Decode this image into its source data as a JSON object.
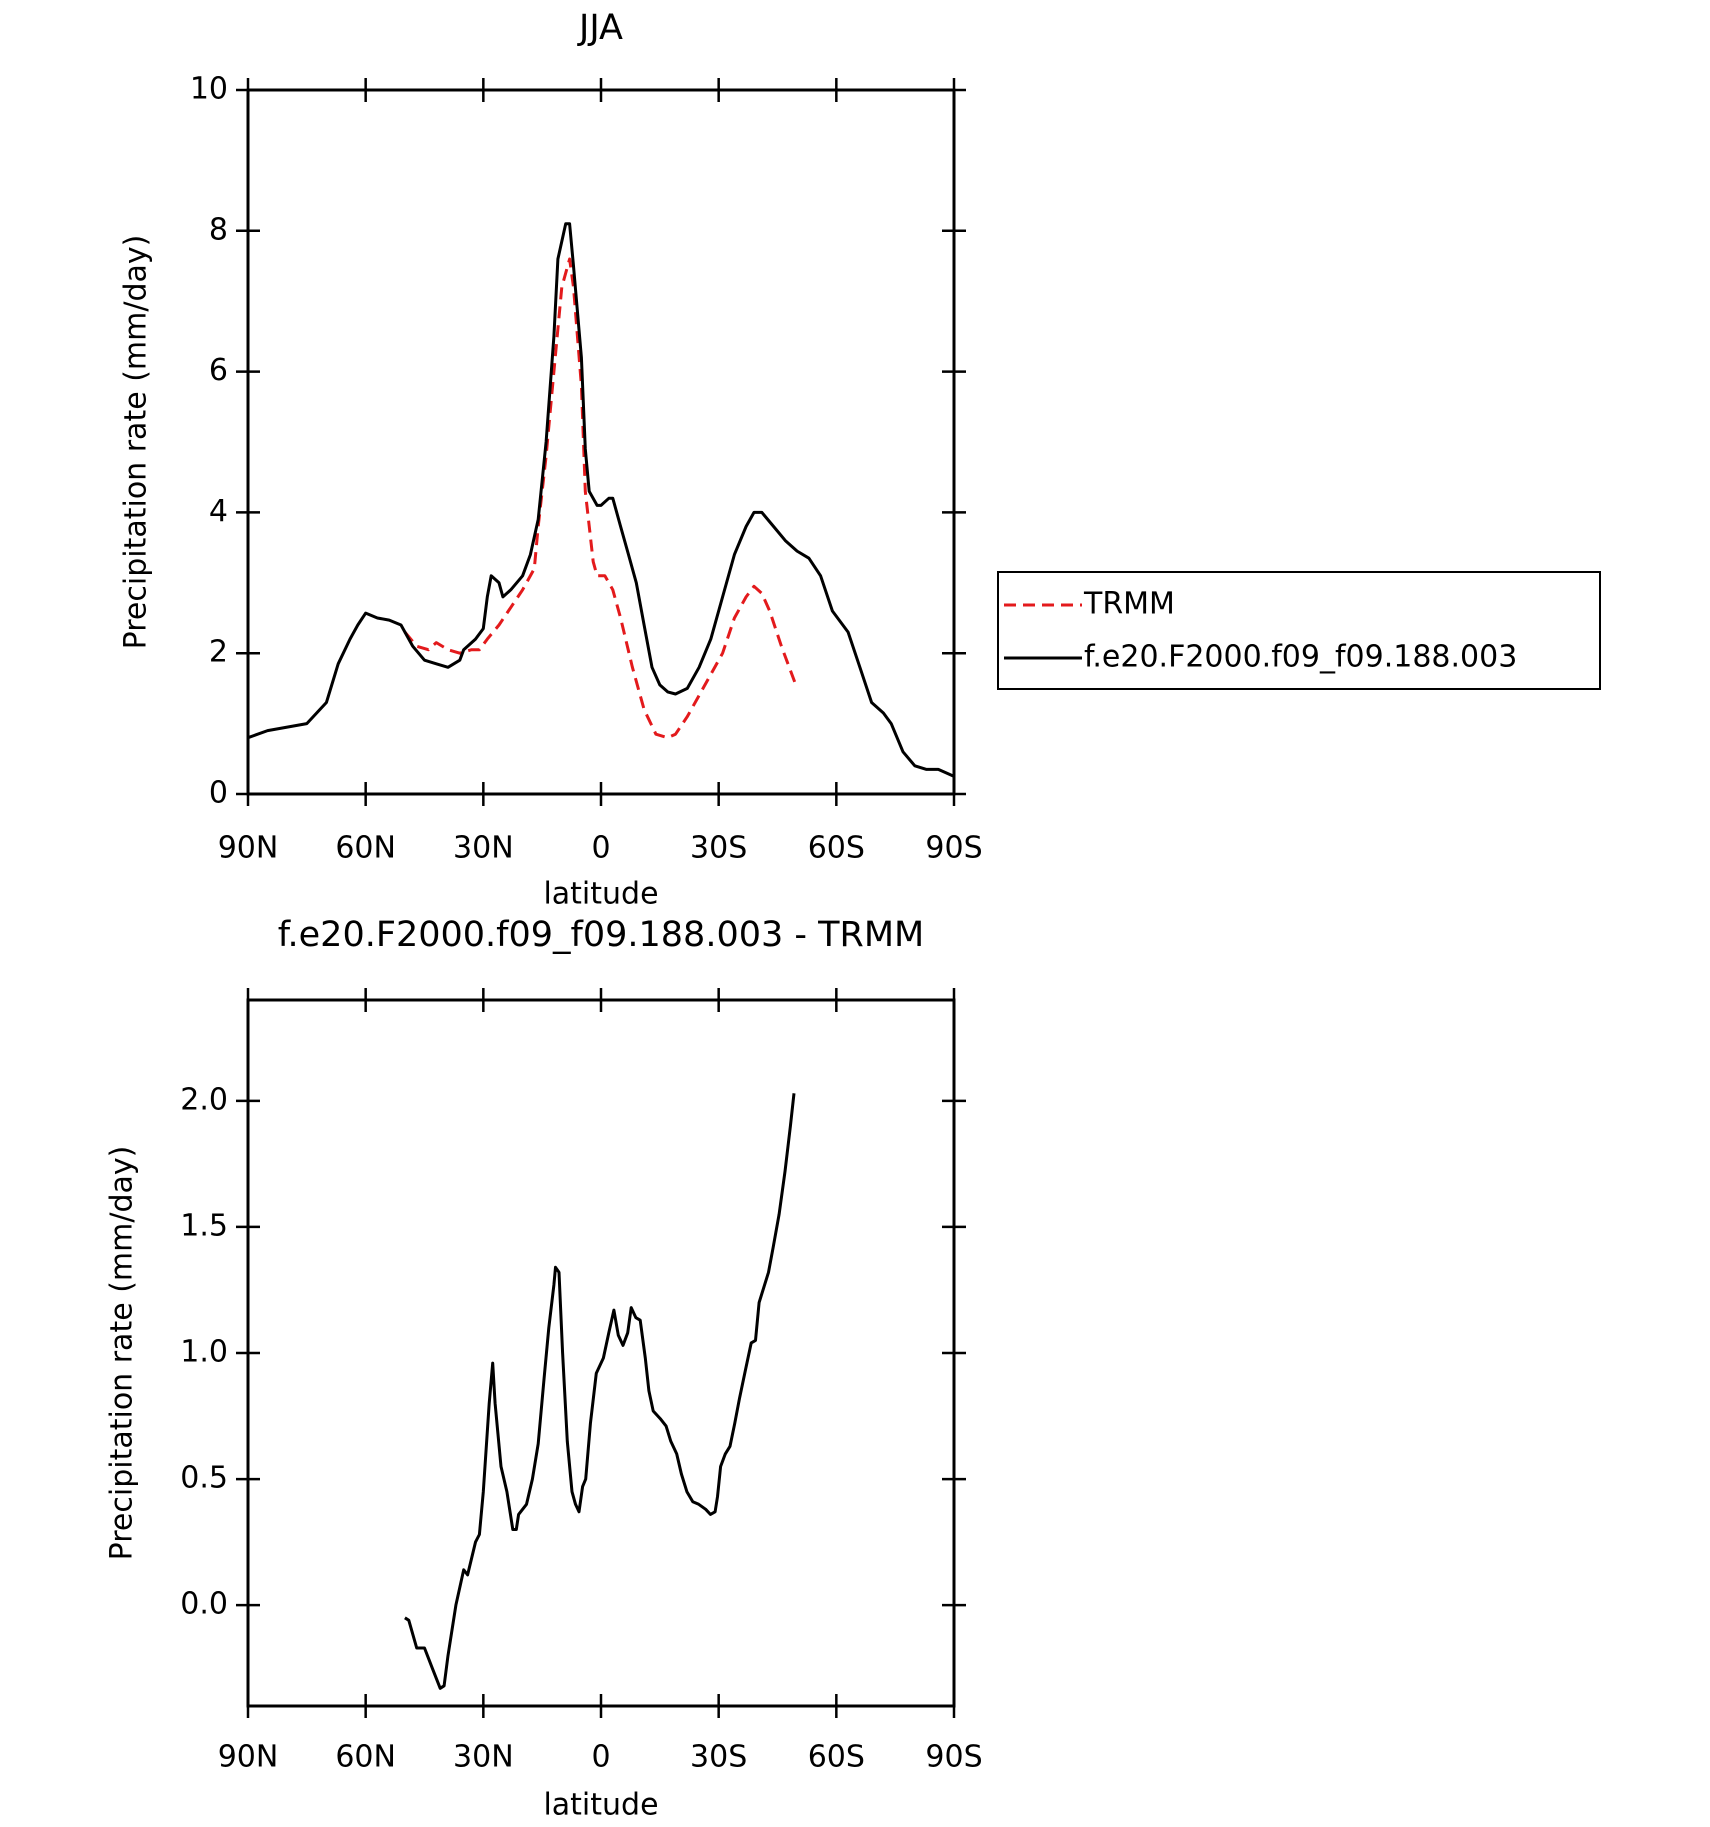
{
  "chart_data": [
    {
      "type": "line",
      "title": "JJA",
      "xlabel": "latitude",
      "ylabel": "Precipitation rate (mm/day)",
      "xlim": [
        90,
        -90
      ],
      "ylim": [
        0,
        10
      ],
      "xticks": [
        {
          "value": 90,
          "label": "90N"
        },
        {
          "value": 60,
          "label": "60N"
        },
        {
          "value": 30,
          "label": "30N"
        },
        0,
        {
          "value": -30,
          "label": "30S"
        },
        {
          "value": -60,
          "label": "60S"
        },
        {
          "value": -90,
          "label": "90S"
        }
      ],
      "yticks": [
        0,
        2,
        4,
        6,
        8,
        10
      ],
      "legend": "right",
      "series": [
        {
          "name": "TRMM",
          "color": "#e31a1c",
          "linestyle": "dashed",
          "x": [
            50,
            47,
            44,
            42,
            39,
            36,
            33,
            31,
            29,
            26,
            23,
            20,
            17,
            16,
            14,
            12,
            10,
            8,
            7,
            5,
            4,
            2,
            1,
            -1,
            -3,
            -5,
            -8,
            -11,
            -14,
            -17,
            -19,
            -22,
            -26,
            -31,
            -34,
            -37,
            -39,
            -41,
            -43,
            -46,
            -50
          ],
          "values": [
            2.3,
            2.1,
            2.05,
            2.15,
            2.05,
            2.0,
            2.05,
            2.05,
            2.2,
            2.4,
            2.65,
            2.9,
            3.2,
            3.8,
            4.8,
            6.0,
            7.2,
            7.6,
            7.2,
            5.8,
            4.3,
            3.3,
            3.1,
            3.1,
            2.9,
            2.5,
            1.8,
            1.2,
            0.85,
            0.8,
            0.85,
            1.1,
            1.5,
            2.0,
            2.5,
            2.8,
            2.95,
            2.85,
            2.6,
            2.1,
            1.5
          ]
        },
        {
          "name": "f.e20.F2000.f09_f09.188.003",
          "color": "#000000",
          "linestyle": "solid",
          "x": [
            90,
            85,
            80,
            75,
            70,
            67,
            64,
            62,
            60,
            57,
            54,
            51,
            48,
            45,
            42,
            39,
            36,
            35,
            32,
            30,
            29,
            28,
            26,
            25,
            23,
            20,
            18,
            16,
            14,
            12,
            11,
            9,
            8,
            7,
            5,
            4,
            3,
            1,
            0,
            -2,
            -3,
            -5,
            -7,
            -9,
            -11,
            -13,
            -15,
            -17,
            -19,
            -22,
            -25,
            -28,
            -31,
            -34,
            -37,
            -39,
            -41,
            -44,
            -47,
            -50,
            -53,
            -56,
            -59,
            -63,
            -66,
            -69,
            -72,
            -74,
            -77,
            -80,
            -83,
            -86,
            -88,
            -90
          ],
          "values": [
            0.8,
            0.9,
            0.95,
            1.0,
            1.3,
            1.85,
            2.2,
            2.4,
            2.57,
            2.5,
            2.47,
            2.4,
            2.1,
            1.9,
            1.85,
            1.8,
            1.9,
            2.05,
            2.2,
            2.35,
            2.8,
            3.1,
            3.0,
            2.8,
            2.9,
            3.1,
            3.4,
            3.9,
            5.0,
            6.5,
            7.6,
            8.1,
            8.1,
            7.5,
            6.2,
            4.9,
            4.3,
            4.1,
            4.1,
            4.2,
            4.2,
            3.8,
            3.4,
            3.0,
            2.4,
            1.8,
            1.55,
            1.45,
            1.42,
            1.5,
            1.8,
            2.2,
            2.8,
            3.4,
            3.8,
            4.0,
            4.0,
            3.8,
            3.6,
            3.45,
            3.35,
            3.1,
            2.6,
            2.3,
            1.8,
            1.3,
            1.15,
            1.0,
            0.6,
            0.4,
            0.35,
            0.35,
            0.3,
            0.25
          ]
        }
      ]
    },
    {
      "type": "line",
      "title": "f.e20.F2000.f09_f09.188.003 - TRMM",
      "xlabel": "latitude",
      "ylabel": "Precipitation rate (mm/day)",
      "xlim": [
        90,
        -90
      ],
      "ylim": [
        -0.4,
        2.4
      ],
      "xticks": [
        {
          "value": 90,
          "label": "90N"
        },
        {
          "value": 60,
          "label": "60N"
        },
        {
          "value": 30,
          "label": "30N"
        },
        0,
        {
          "value": -30,
          "label": "30S"
        },
        {
          "value": -60,
          "label": "60S"
        },
        {
          "value": -90,
          "label": "90S"
        }
      ],
      "yticks": [
        {
          "value": 0,
          "label": "0.0"
        },
        0.5,
        {
          "value": 1,
          "label": "1.0"
        },
        1.5,
        {
          "value": 2,
          "label": "2.0"
        }
      ],
      "color": "#000000",
      "x": [
        50,
        49,
        47,
        45,
        43,
        41,
        40,
        39,
        37,
        35,
        34,
        32,
        31,
        30,
        28.5,
        27.6,
        27,
        25.5,
        24,
        22.5,
        21.6,
        21,
        19,
        17.5,
        16,
        14.5,
        13.3,
        12,
        11.6,
        10.7,
        9.8,
        8.6,
        7.4,
        6.5,
        5.6,
        4.7,
        3.9,
        2.7,
        1.2,
        -0.6,
        -2,
        -3.3,
        -4.4,
        -5.6,
        -6.8,
        -7.7,
        -8.9,
        -10,
        -11.3,
        -12.2,
        -13.3,
        -15.1,
        -16.6,
        -17.8,
        -19.3,
        -20.5,
        -21.9,
        -23.4,
        -24.9,
        -26.7,
        -27.9,
        -29.1,
        -29.7,
        -30.5,
        -31.7,
        -32.9,
        -34.1,
        -35.3,
        -36.8,
        -38.3,
        -39.4,
        -40.3,
        -41.5,
        -42.7,
        -43.9,
        -45.4,
        -46.9,
        -48.3,
        -49.2
      ],
      "values": [
        -0.05,
        -0.06,
        -0.17,
        -0.17,
        -0.25,
        -0.33,
        -0.32,
        -0.2,
        0.0,
        0.14,
        0.12,
        0.25,
        0.28,
        0.45,
        0.8,
        0.96,
        0.8,
        0.55,
        0.45,
        0.3,
        0.3,
        0.36,
        0.4,
        0.5,
        0.64,
        0.9,
        1.1,
        1.27,
        1.34,
        1.32,
        1.0,
        0.65,
        0.45,
        0.4,
        0.37,
        0.47,
        0.5,
        0.72,
        0.92,
        0.98,
        1.08,
        1.17,
        1.07,
        1.03,
        1.08,
        1.18,
        1.14,
        1.13,
        0.98,
        0.85,
        0.77,
        0.74,
        0.71,
        0.65,
        0.6,
        0.52,
        0.45,
        0.41,
        0.4,
        0.38,
        0.36,
        0.37,
        0.43,
        0.55,
        0.6,
        0.63,
        0.72,
        0.82,
        0.93,
        1.04,
        1.05,
        1.2,
        1.26,
        1.32,
        1.42,
        1.55,
        1.72,
        1.9,
        2.03
      ]
    }
  ]
}
